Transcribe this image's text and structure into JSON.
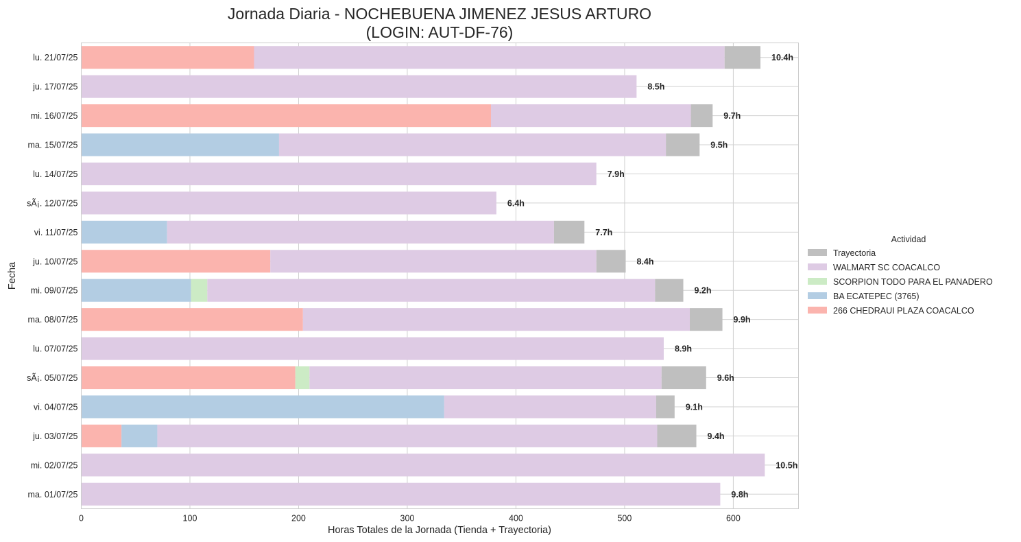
{
  "chart_data": {
    "type": "bar",
    "orientation": "horizontal",
    "stacked": true,
    "title_line1": "Jornada Diaria - NOCHEBUENA JIMENEZ JESUS ARTURO",
    "title_line2": "(LOGIN: AUT-DF-76)",
    "xlabel": "Horas Totales de la Jornada (Tienda + Trayectoria)",
    "ylabel": "Fecha",
    "xlim": [
      0,
      660
    ],
    "xticks": [
      0,
      100,
      200,
      300,
      400,
      500,
      600
    ],
    "grid": true,
    "legend_title": "Actividad",
    "legend_position": "right",
    "legend": [
      {
        "name": "Trayectoria",
        "color": "#bfbfbf"
      },
      {
        "name": "WALMART SC COACALCO",
        "color": "#decbe4"
      },
      {
        "name": "SCORPION TODO PARA EL PANADERO",
        "color": "#ccebc5"
      },
      {
        "name": "BA ECATEPEC  (3765)",
        "color": "#b3cde3"
      },
      {
        "name": "266 CHEDRAUI PLAZA COACALCO",
        "color": "#fbb4ae"
      }
    ],
    "categories": [
      "lu. 21/07/25",
      "ju. 17/07/25",
      "mi. 16/07/25",
      "ma. 15/07/25",
      "lu. 14/07/25",
      "sÃ¡. 12/07/25",
      "vi. 11/07/25",
      "ju. 10/07/25",
      "mi. 09/07/25",
      "ma. 08/07/25",
      "lu. 07/07/25",
      "sÃ¡. 05/07/25",
      "vi. 04/07/25",
      "ju. 03/07/25",
      "mi. 02/07/25",
      "ma. 01/07/25"
    ],
    "bars": [
      {
        "segments": [
          {
            "name": "266 CHEDRAUI PLAZA COACALCO",
            "value": 159
          },
          {
            "name": "WALMART SC COACALCO",
            "value": 433
          },
          {
            "name": "Trayectoria",
            "value": 33
          }
        ],
        "total_label": "10.4h"
      },
      {
        "segments": [
          {
            "name": "WALMART SC COACALCO",
            "value": 511
          }
        ],
        "total_label": "8.5h"
      },
      {
        "segments": [
          {
            "name": "266 CHEDRAUI PLAZA COACALCO",
            "value": 377
          },
          {
            "name": "WALMART SC COACALCO",
            "value": 184
          },
          {
            "name": "Trayectoria",
            "value": 20
          }
        ],
        "total_label": "9.7h"
      },
      {
        "segments": [
          {
            "name": "BA ECATEPEC  (3765)",
            "value": 182
          },
          {
            "name": "WALMART SC COACALCO",
            "value": 356
          },
          {
            "name": "Trayectoria",
            "value": 31
          }
        ],
        "total_label": "9.5h"
      },
      {
        "segments": [
          {
            "name": "WALMART SC COACALCO",
            "value": 474
          }
        ],
        "total_label": "7.9h"
      },
      {
        "segments": [
          {
            "name": "WALMART SC COACALCO",
            "value": 382
          }
        ],
        "total_label": "6.4h"
      },
      {
        "segments": [
          {
            "name": "BA ECATEPEC  (3765)",
            "value": 79
          },
          {
            "name": "WALMART SC COACALCO",
            "value": 356
          },
          {
            "name": "Trayectoria",
            "value": 28
          }
        ],
        "total_label": "7.7h"
      },
      {
        "segments": [
          {
            "name": "266 CHEDRAUI PLAZA COACALCO",
            "value": 174
          },
          {
            "name": "WALMART SC COACALCO",
            "value": 300
          },
          {
            "name": "Trayectoria",
            "value": 27
          }
        ],
        "total_label": "8.4h"
      },
      {
        "segments": [
          {
            "name": "BA ECATEPEC  (3765)",
            "value": 101
          },
          {
            "name": "SCORPION TODO PARA EL PANADERO",
            "value": 15
          },
          {
            "name": "WALMART SC COACALCO",
            "value": 412
          },
          {
            "name": "Trayectoria",
            "value": 26
          }
        ],
        "total_label": "9.2h"
      },
      {
        "segments": [
          {
            "name": "266 CHEDRAUI PLAZA COACALCO",
            "value": 204
          },
          {
            "name": "WALMART SC COACALCO",
            "value": 356
          },
          {
            "name": "Trayectoria",
            "value": 30
          }
        ],
        "total_label": "9.9h"
      },
      {
        "segments": [
          {
            "name": "WALMART SC COACALCO",
            "value": 536
          }
        ],
        "total_label": "8.9h"
      },
      {
        "segments": [
          {
            "name": "266 CHEDRAUI PLAZA COACALCO",
            "value": 197
          },
          {
            "name": "SCORPION TODO PARA EL PANADERO",
            "value": 13
          },
          {
            "name": "WALMART SC COACALCO",
            "value": 324
          },
          {
            "name": "Trayectoria",
            "value": 41
          }
        ],
        "total_label": "9.6h"
      },
      {
        "segments": [
          {
            "name": "BA ECATEPEC  (3765)",
            "value": 334
          },
          {
            "name": "WALMART SC COACALCO",
            "value": 195
          },
          {
            "name": "Trayectoria",
            "value": 17
          }
        ],
        "total_label": "9.1h"
      },
      {
        "segments": [
          {
            "name": "266 CHEDRAUI PLAZA COACALCO",
            "value": 37
          },
          {
            "name": "BA ECATEPEC  (3765)",
            "value": 33
          },
          {
            "name": "WALMART SC COACALCO",
            "value": 460
          },
          {
            "name": "Trayectoria",
            "value": 36
          }
        ],
        "total_label": "9.4h"
      },
      {
        "segments": [
          {
            "name": "WALMART SC COACALCO",
            "value": 629
          }
        ],
        "total_label": "10.5h"
      },
      {
        "segments": [
          {
            "name": "WALMART SC COACALCO",
            "value": 588
          }
        ],
        "total_label": "9.8h"
      }
    ]
  }
}
